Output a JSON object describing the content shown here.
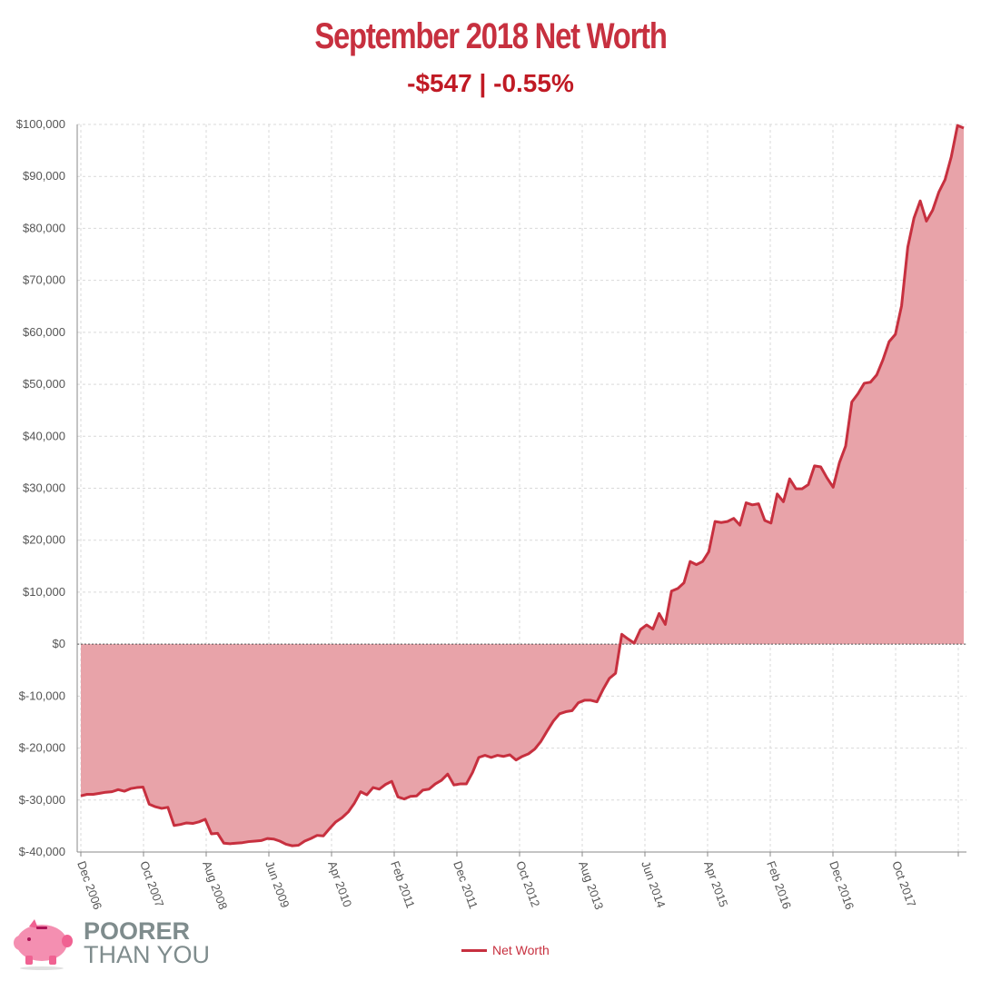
{
  "chart_data": {
    "type": "area",
    "title": "September 2018 Net Worth",
    "subtitle": "-$547 | -0.55%",
    "ylim": [
      -40000,
      100000
    ],
    "yticks": [
      -40000,
      -30000,
      -20000,
      -10000,
      0,
      10000,
      20000,
      30000,
      40000,
      50000,
      60000,
      70000,
      80000,
      90000,
      100000
    ],
    "ytick_labels": [
      "$-40,000",
      "$-30,000",
      "$-20,000",
      "$-10,000",
      "$0",
      "$10,000",
      "$20,000",
      "$30,000",
      "$40,000",
      "$50,000",
      "$60,000",
      "$70,000",
      "$80,000",
      "$90,000",
      "$100,000"
    ],
    "xtick_labels": [
      "Dec 2006",
      "Oct 2007",
      "Aug 2008",
      "Jun 2009",
      "Apr 2010",
      "Feb 2011",
      "Dec 2011",
      "Oct 2012",
      "Aug 2013",
      "Jun 2014",
      "Apr 2015",
      "Feb 2016",
      "Dec 2016",
      "Oct 2017"
    ],
    "x_start": "Dec 2006",
    "x_end": "Sep 2018",
    "grid": true,
    "legend_position": "bottom-center",
    "colors": {
      "line": "#c7303f",
      "fill": "#e8a3a9"
    },
    "series": [
      {
        "name": "Net Worth",
        "values": [
          -29200,
          -28900,
          -28900,
          -28700,
          -28500,
          -28400,
          -28000,
          -28300,
          -27800,
          -27600,
          -27500,
          -30800,
          -31300,
          -31600,
          -31400,
          -34900,
          -34700,
          -34400,
          -34500,
          -34200,
          -33700,
          -36500,
          -36400,
          -38300,
          -38400,
          -38300,
          -38200,
          -38000,
          -37900,
          -37800,
          -37400,
          -37500,
          -37900,
          -38500,
          -38800,
          -38700,
          -37900,
          -37400,
          -36800,
          -36900,
          -35500,
          -34200,
          -33400,
          -32300,
          -30600,
          -28400,
          -29000,
          -27600,
          -27900,
          -27000,
          -26400,
          -29400,
          -29800,
          -29300,
          -29200,
          -28100,
          -27900,
          -26900,
          -26200,
          -25000,
          -27100,
          -26900,
          -26900,
          -24700,
          -21800,
          -21400,
          -21800,
          -21400,
          -21600,
          -21300,
          -22300,
          -21600,
          -21100,
          -20200,
          -18700,
          -16700,
          -14800,
          -13400,
          -13000,
          -12800,
          -11300,
          -10800,
          -10800,
          -11100,
          -8700,
          -6600,
          -5600,
          1900,
          1000,
          200,
          2800,
          3700,
          2900,
          5900,
          3800,
          10200,
          10700,
          11800,
          15900,
          15300,
          15900,
          17800,
          23600,
          23400,
          23600,
          24200,
          22900,
          27200,
          26800,
          27000,
          23800,
          23300,
          28900,
          27400,
          31800,
          29900,
          29900,
          30700,
          34300,
          34100,
          32000,
          30200,
          34900,
          38100,
          46600,
          48200,
          50200,
          50400,
          51800,
          54700,
          58200,
          59600,
          65100,
          76400,
          82000,
          85300,
          81400,
          83500,
          87000,
          89400,
          93800,
          99800,
          99300
        ]
      }
    ]
  },
  "logo": {
    "line1": "POORER",
    "line2": "THAN YOU"
  }
}
